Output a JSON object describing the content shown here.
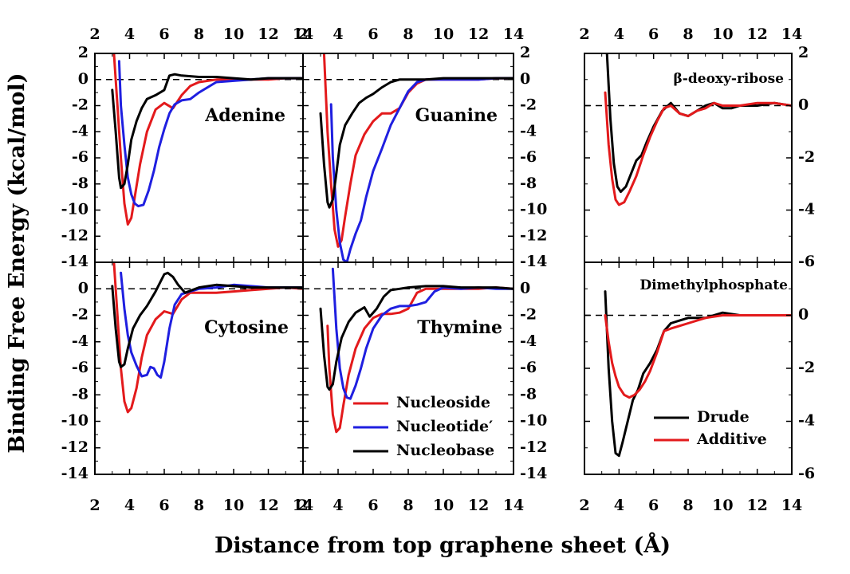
{
  "figure": {
    "ylabel": "Binding Free Energy (kcal/mol)",
    "xlabel": "Distance from top graphene sheet (Å)"
  },
  "legends": {
    "left": [
      {
        "label": "Nucleoside",
        "color": "#e31a1c"
      },
      {
        "label": "Nucleotide′",
        "color": "#1f1fe0"
      },
      {
        "label": "Nucleobase",
        "color": "#000000"
      }
    ],
    "right": [
      {
        "label": "Drude",
        "color": "#000000"
      },
      {
        "label": "Additive",
        "color": "#e31a1c"
      }
    ]
  },
  "chart_data": [
    {
      "type": "line",
      "title": "Adenine",
      "xlim": [
        2,
        14
      ],
      "ylim": [
        -14,
        2
      ],
      "grid": false,
      "xticks": [
        "2",
        "4",
        "6",
        "8",
        "10",
        "12",
        "14"
      ],
      "yticks": [
        "2",
        "0",
        "-2",
        "-4",
        "-6",
        "-8",
        "-10",
        "-12",
        "-14"
      ],
      "series": [
        {
          "name": "Nucleoside",
          "color": "#e31a1c",
          "x": [
            3.1,
            3.3,
            3.5,
            3.7,
            3.9,
            4.1,
            4.3,
            4.6,
            5.0,
            5.5,
            6.0,
            6.5,
            7.0,
            7.5,
            8.0,
            9,
            10,
            11,
            12,
            13,
            14
          ],
          "y": [
            2,
            -2,
            -6,
            -9.5,
            -11.1,
            -10.6,
            -9,
            -6.5,
            -4,
            -2.3,
            -1.8,
            -2.2,
            -1.2,
            -0.5,
            -0.2,
            0,
            0,
            0,
            0,
            0.1,
            0.1
          ]
        },
        {
          "name": "Nucleotide′",
          "color": "#1f1fe0",
          "x": [
            3.4,
            3.5,
            3.7,
            3.9,
            4.1,
            4.3,
            4.5,
            4.8,
            5.1,
            5.4,
            5.7,
            6.0,
            6.3,
            6.6,
            7.0,
            7.5,
            8.0,
            9,
            10,
            11,
            12,
            13,
            14
          ],
          "y": [
            1.4,
            -2,
            -5,
            -7.5,
            -8.8,
            -9.5,
            -9.7,
            -9.6,
            -8.5,
            -7,
            -5.2,
            -3.8,
            -2.6,
            -1.9,
            -1.6,
            -1.5,
            -1,
            -0.2,
            -0.1,
            0,
            0.1,
            0.1,
            0.1
          ]
        },
        {
          "name": "Nucleobase",
          "color": "#000000",
          "x": [
            3.0,
            3.2,
            3.4,
            3.5,
            3.7,
            3.9,
            4.1,
            4.4,
            4.7,
            5.0,
            5.5,
            6.0,
            6.3,
            6.6,
            7.0,
            8,
            9,
            10,
            11,
            12,
            13,
            14
          ],
          "y": [
            -0.8,
            -4,
            -7.5,
            -8.3,
            -8,
            -6.5,
            -4.6,
            -3.2,
            -2.2,
            -1.5,
            -1.2,
            -0.8,
            0.3,
            0.4,
            0.3,
            0.2,
            0.2,
            0.1,
            0,
            0.1,
            0.1,
            0.1
          ]
        }
      ]
    },
    {
      "type": "line",
      "title": "Guanine",
      "xlim": [
        2,
        14
      ],
      "ylim": [
        -14,
        2
      ],
      "grid": false,
      "xticks": [
        "2",
        "4",
        "6",
        "8",
        "10",
        "12",
        "14"
      ],
      "yticks": [
        "2",
        "0",
        "-2",
        "-4",
        "-6",
        "-8",
        "-10",
        "-12",
        "-14"
      ],
      "series": [
        {
          "name": "Nucleoside",
          "color": "#e31a1c",
          "x": [
            3.2,
            3.4,
            3.6,
            3.8,
            4.0,
            4.2,
            4.4,
            4.7,
            5.0,
            5.5,
            6.0,
            6.5,
            7.0,
            7.5,
            8.0,
            8.5,
            9,
            10,
            11,
            12,
            13,
            14
          ],
          "y": [
            2,
            -4,
            -8,
            -11.5,
            -12.8,
            -12.3,
            -10.5,
            -8,
            -5.8,
            -4.2,
            -3.2,
            -2.6,
            -2.6,
            -2.2,
            -1.0,
            -0.3,
            0,
            0,
            0,
            0,
            0.1,
            0.1
          ]
        },
        {
          "name": "Nucleotide′",
          "color": "#1f1fe0",
          "x": [
            3.6,
            3.7,
            3.9,
            4.1,
            4.3,
            4.5,
            4.7,
            5.0,
            5.3,
            5.6,
            6.0,
            6.5,
            7.0,
            7.5,
            8.0,
            8.5,
            9,
            10,
            11,
            12,
            13,
            14
          ],
          "y": [
            -1.9,
            -6,
            -10,
            -12.5,
            -13.8,
            -14,
            -13,
            -11.8,
            -10.8,
            -9,
            -7,
            -5.3,
            -3.5,
            -2.2,
            -0.9,
            -0.2,
            0,
            0,
            0,
            0,
            0.1,
            0.1
          ]
        },
        {
          "name": "Nucleobase",
          "color": "#000000",
          "x": [
            3.0,
            3.2,
            3.4,
            3.5,
            3.7,
            3.9,
            4.1,
            4.4,
            4.8,
            5.2,
            5.6,
            6.0,
            6.5,
            7.0,
            7.5,
            8,
            9,
            10,
            11,
            12,
            13,
            14
          ],
          "y": [
            -2.6,
            -6.5,
            -9.4,
            -9.8,
            -9.2,
            -7.2,
            -5,
            -3.5,
            -2.6,
            -1.8,
            -1.4,
            -1.1,
            -0.6,
            -0.2,
            0,
            0,
            0,
            0.1,
            0.1,
            0.1,
            0.1,
            0.1
          ]
        }
      ]
    },
    {
      "type": "line",
      "title": "Cytosine",
      "xlim": [
        2,
        14
      ],
      "ylim": [
        -14,
        2
      ],
      "grid": false,
      "xticks": [
        "2",
        "4",
        "6",
        "8",
        "10",
        "12",
        "14"
      ],
      "yticks": [
        "2",
        "0",
        "-2",
        "-4",
        "-6",
        "-8",
        "-10",
        "-12",
        "-14"
      ],
      "series": [
        {
          "name": "Nucleoside",
          "color": "#e31a1c",
          "x": [
            3.1,
            3.3,
            3.5,
            3.7,
            3.9,
            4.1,
            4.4,
            4.7,
            5.0,
            5.5,
            6.0,
            6.5,
            7.0,
            7.5,
            8,
            9,
            10,
            11,
            12,
            13,
            14
          ],
          "y": [
            2,
            -2,
            -6,
            -8.5,
            -9.3,
            -9,
            -7.5,
            -5.2,
            -3.5,
            -2.3,
            -1.7,
            -1.9,
            -0.8,
            -0.3,
            -0.3,
            -0.3,
            -0.2,
            -0.1,
            0,
            0.1,
            0
          ]
        },
        {
          "name": "Nucleotide′",
          "color": "#1f1fe0",
          "x": [
            3.5,
            3.7,
            3.9,
            4.1,
            4.4,
            4.7,
            5.0,
            5.2,
            5.4,
            5.6,
            5.8,
            6.0,
            6.3,
            6.6,
            7.0,
            7.5,
            8,
            9,
            10,
            11,
            12,
            13,
            14
          ],
          "y": [
            1.2,
            -1.5,
            -3.5,
            -4.8,
            -5.8,
            -6.6,
            -6.5,
            -5.9,
            -6.0,
            -6.5,
            -6.7,
            -5.5,
            -3,
            -1.2,
            -0.4,
            -0.2,
            0,
            0.1,
            0.3,
            0.2,
            0.1,
            0.1,
            0.1
          ]
        },
        {
          "name": "Nucleobase",
          "color": "#000000",
          "x": [
            3.0,
            3.2,
            3.4,
            3.5,
            3.7,
            3.9,
            4.2,
            4.6,
            5.0,
            5.5,
            6.0,
            6.2,
            6.5,
            6.8,
            7.2,
            7.6,
            8,
            9,
            10,
            11,
            12,
            13,
            14
          ],
          "y": [
            0.2,
            -3,
            -5.5,
            -5.9,
            -5.7,
            -4.5,
            -3,
            -2,
            -1.3,
            -0.2,
            1.1,
            1.2,
            0.9,
            0.3,
            -0.3,
            -0.1,
            0.1,
            0.3,
            0.2,
            0.1,
            0.1,
            0.1,
            0.1
          ]
        }
      ]
    },
    {
      "type": "line",
      "title": "Thymine",
      "xlim": [
        2,
        14
      ],
      "ylim": [
        -14,
        2
      ],
      "grid": false,
      "xticks": [
        "2",
        "4",
        "6",
        "8",
        "10",
        "12",
        "14"
      ],
      "yticks": [
        "2",
        "0",
        "-2",
        "-4",
        "-6",
        "-8",
        "-10",
        "-12",
        "-14"
      ],
      "series": [
        {
          "name": "Nucleoside",
          "color": "#e31a1c",
          "x": [
            3.4,
            3.5,
            3.7,
            3.9,
            4.1,
            4.3,
            4.6,
            5.0,
            5.5,
            6.0,
            6.5,
            7.0,
            7.5,
            8.0,
            8.5,
            9,
            10,
            11,
            12,
            13,
            14
          ],
          "y": [
            -2.8,
            -6,
            -9.5,
            -10.8,
            -10.5,
            -8.8,
            -6.5,
            -4.5,
            -3,
            -2.2,
            -1.9,
            -1.9,
            -1.8,
            -1.5,
            -0.3,
            0,
            0,
            0,
            0,
            0.1,
            0
          ]
        },
        {
          "name": "Nucleotide′",
          "color": "#1f1fe0",
          "x": [
            3.7,
            3.9,
            4.1,
            4.3,
            4.5,
            4.7,
            5.0,
            5.3,
            5.6,
            6.0,
            6.5,
            7.0,
            7.5,
            8.0,
            8.5,
            9,
            9.5,
            10,
            11,
            12,
            13,
            14
          ],
          "y": [
            1.5,
            -3,
            -6,
            -7.5,
            -8.2,
            -8.3,
            -7.3,
            -6,
            -4.5,
            -3,
            -2,
            -1.5,
            -1.3,
            -1.3,
            -1.2,
            -1.0,
            -0.2,
            0.1,
            0,
            0.1,
            0,
            0
          ]
        },
        {
          "name": "Nucleobase",
          "color": "#000000",
          "x": [
            3.0,
            3.2,
            3.4,
            3.5,
            3.7,
            3.9,
            4.2,
            4.6,
            5.0,
            5.5,
            5.8,
            6.2,
            6.6,
            7.0,
            7.5,
            8,
            9,
            10,
            11,
            12,
            13,
            14
          ],
          "y": [
            -1.5,
            -5,
            -7.4,
            -7.6,
            -7.2,
            -5.5,
            -3.7,
            -2.5,
            -1.8,
            -1.4,
            -2.1,
            -1.5,
            -0.6,
            -0.1,
            0,
            0.1,
            0.2,
            0.2,
            0.1,
            0.1,
            0.1,
            0
          ]
        }
      ]
    },
    {
      "type": "line",
      "title": "β-deoxy-ribose",
      "xlim": [
        2,
        14
      ],
      "ylim": [
        -6,
        2
      ],
      "grid": false,
      "xticks": [
        "2",
        "4",
        "6",
        "8",
        "10",
        "12",
        "14"
      ],
      "yticks": [
        "2",
        "0",
        "-2",
        "-4",
        "-6"
      ],
      "series": [
        {
          "name": "Drude",
          "color": "#000000",
          "x": [
            3.3,
            3.5,
            3.7,
            3.9,
            4.1,
            4.4,
            4.7,
            5.0,
            5.3,
            5.6,
            6.0,
            6.5,
            7.0,
            7.5,
            8,
            8.5,
            9,
            9.5,
            10,
            10.5,
            11,
            12,
            13,
            14
          ],
          "y": [
            2,
            -0.5,
            -2.2,
            -3.1,
            -3.3,
            -3.1,
            -2.6,
            -2.1,
            -1.9,
            -1.4,
            -0.8,
            -0.2,
            0.1,
            -0.3,
            -0.4,
            -0.2,
            0,
            0.1,
            -0.1,
            -0.1,
            0,
            0,
            0.1,
            0
          ]
        },
        {
          "name": "Additive",
          "color": "#e31a1c",
          "x": [
            3.2,
            3.4,
            3.6,
            3.8,
            4.0,
            4.3,
            4.6,
            5.0,
            5.4,
            5.8,
            6.2,
            6.6,
            7.0,
            7.5,
            8,
            8.5,
            9,
            9.5,
            10,
            11,
            12,
            13,
            14
          ],
          "y": [
            0.5,
            -1.5,
            -2.8,
            -3.6,
            -3.8,
            -3.7,
            -3.3,
            -2.7,
            -1.9,
            -1.2,
            -0.6,
            -0.1,
            0,
            -0.3,
            -0.4,
            -0.2,
            -0.1,
            0.1,
            0,
            0,
            0.1,
            0.1,
            0
          ]
        }
      ]
    },
    {
      "type": "line",
      "title": "Dimethylphosphate",
      "xlim": [
        2,
        14
      ],
      "ylim": [
        -6,
        2
      ],
      "grid": false,
      "xticks": [
        "2",
        "4",
        "6",
        "8",
        "10",
        "12",
        "14"
      ],
      "yticks": [
        "2",
        "0",
        "-2",
        "-4",
        "-6"
      ],
      "series": [
        {
          "name": "Drude",
          "color": "#000000",
          "x": [
            3.2,
            3.4,
            3.6,
            3.8,
            4.0,
            4.2,
            4.5,
            4.8,
            5.1,
            5.4,
            5.8,
            6.2,
            6.6,
            7.0,
            7.5,
            8,
            9,
            10,
            11,
            12,
            13,
            14
          ],
          "y": [
            0.9,
            -2,
            -4,
            -5.2,
            -5.3,
            -4.8,
            -4,
            -3.2,
            -2.8,
            -2.2,
            -1.8,
            -1.3,
            -0.6,
            -0.3,
            -0.2,
            -0.1,
            -0.1,
            0.1,
            0,
            0,
            0,
            0
          ]
        },
        {
          "name": "Additive",
          "color": "#e31a1c",
          "x": [
            3.2,
            3.4,
            3.6,
            3.8,
            4.0,
            4.3,
            4.6,
            4.9,
            5.2,
            5.5,
            5.8,
            6.2,
            6.6,
            7.0,
            7.5,
            8,
            9,
            10,
            11,
            12,
            13,
            14
          ],
          "y": [
            0,
            -1,
            -1.8,
            -2.3,
            -2.7,
            -3.0,
            -3.1,
            -3.0,
            -2.8,
            -2.5,
            -2.1,
            -1.4,
            -0.6,
            -0.5,
            -0.4,
            -0.3,
            -0.1,
            0,
            0,
            0,
            0,
            0
          ]
        }
      ]
    }
  ]
}
